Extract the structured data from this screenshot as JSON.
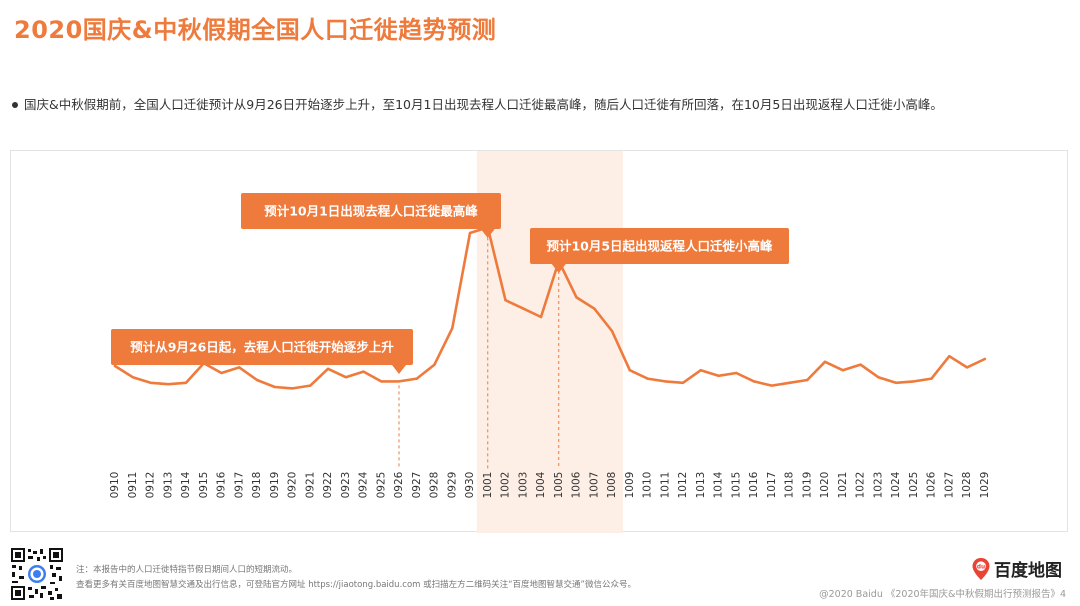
{
  "page": {
    "title": "2020国庆&中秋假期全国人口迁徙趋势预测",
    "bullet": "国庆&中秋假期前，全国人口迁徙预计从9月26日开始逐步上升，至10月1日出现去程人口迁徙最高峰，随后人口迁徙有所回落，在10月5日出现返程人口迁徙小高峰。",
    "notes": [
      "注：本报告中的人口迁徙特指节假日期间人口的短期流动。",
      "查看更多有关百度地图智慧交通及出行信息，可登陆官方网址 https://jiaotong.baidu.com 或扫描左方二维码关注“百度地图智慧交通”微信公众号。"
    ],
    "logo_text": "百度地图",
    "logo_icon": "map-pin-icon",
    "copyright": "@2020 Baidu 《2020年国庆&中秋假期出行预测报告》4",
    "colors": {
      "accent": "#ee7a3c",
      "highlight": "#fdeee6",
      "axis_text": "#333333"
    }
  },
  "chart_data": {
    "type": "line",
    "title": "",
    "xlabel": "",
    "ylabel": "",
    "y_axis_visible": false,
    "grid": false,
    "highlight_range": [
      "1001",
      "1008"
    ],
    "categories": [
      "0910",
      "0911",
      "0912",
      "0913",
      "0914",
      "0915",
      "0916",
      "0917",
      "0918",
      "0919",
      "0920",
      "0921",
      "0922",
      "0923",
      "0924",
      "0925",
      "0926",
      "0927",
      "0928",
      "0929",
      "0930",
      "1001",
      "1002",
      "1003",
      "1004",
      "1005",
      "1006",
      "1007",
      "1008",
      "1009",
      "1010",
      "1011",
      "1012",
      "1013",
      "1014",
      "1015",
      "1016",
      "1017",
      "1018",
      "1019",
      "1020",
      "1021",
      "1022",
      "1023",
      "1024",
      "1025",
      "1026",
      "1027",
      "1028",
      "1029"
    ],
    "series": [
      {
        "values": [
          27.5,
          23.5,
          21.5,
          21,
          21.5,
          28.5,
          25,
          27,
          22.5,
          20,
          19.5,
          20.5,
          26.5,
          23.5,
          25.5,
          22,
          22,
          23,
          28,
          41,
          75,
          77,
          51,
          48,
          45,
          65,
          52,
          48,
          40,
          26,
          23,
          22,
          21.5,
          26,
          24,
          25,
          22,
          20.5,
          21.5,
          22.5,
          29,
          26,
          28,
          23.5,
          21.5,
          22,
          23,
          31,
          27,
          30
        ]
      }
    ],
    "annotations": [
      {
        "category": "0926",
        "text": "预计从9月26日起，去程人口迁徙开始逐步上升"
      },
      {
        "category": "1001",
        "text": "预计10月1日出现去程人口迁徙最高峰"
      },
      {
        "category": "1005",
        "text": "预计10月5日起出现返程人口迁徙小高峰"
      }
    ]
  }
}
